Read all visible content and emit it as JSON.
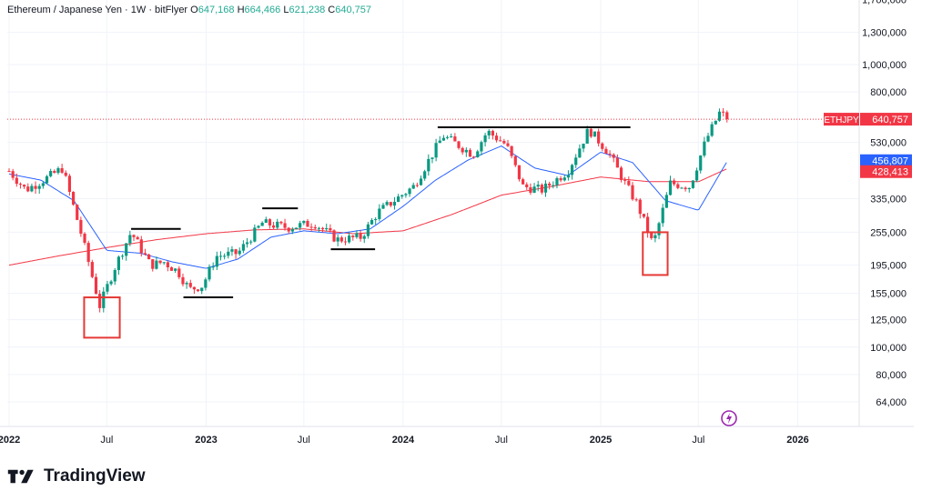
{
  "header": {
    "symbol_desc": "Ethereum / Japanese Yen · 1W · bitFlyer",
    "o_label": "O",
    "o_value": "647,168",
    "h_label": "H",
    "h_value": "664,466",
    "l_label": "L",
    "l_value": "621,238",
    "c_label": "C",
    "c_value": "640,757"
  },
  "brand": {
    "name": "TradingView"
  },
  "colors": {
    "up": "#089981",
    "down": "#f23645",
    "ma_fast": "#2962ff",
    "ma_slow": "#f23645",
    "annotation_box": "#e53935",
    "annotation_line": "#000000",
    "grid": "#f0f3fa",
    "axis_text": "#131722"
  },
  "chart_data": {
    "type": "candlestick",
    "symbol": "ETHJPY",
    "interval": "1W",
    "exchange": "bitFlyer",
    "y_scale": "log",
    "ylim": [
      50000,
      1800000
    ],
    "y_ticks": [
      {
        "label": "1,700,000",
        "value": 1700000
      },
      {
        "label": "1,300,000",
        "value": 1300000
      },
      {
        "label": "1,000,000",
        "value": 1000000
      },
      {
        "label": "800,000",
        "value": 800000
      },
      {
        "label": "530,000",
        "value": 530000
      },
      {
        "label": "335,000",
        "value": 335000
      },
      {
        "label": "255,000",
        "value": 255000
      },
      {
        "label": "195,000",
        "value": 195000
      },
      {
        "label": "155,000",
        "value": 155000
      },
      {
        "label": "125,000",
        "value": 125000
      },
      {
        "label": "100,000",
        "value": 100000
      },
      {
        "label": "80,000",
        "value": 80000
      },
      {
        "label": "64,000",
        "value": 64000
      }
    ],
    "x_ticks": [
      {
        "label": "2022",
        "date": "2022-01-01"
      },
      {
        "label": "Jul",
        "date": "2022-07-01"
      },
      {
        "label": "2023",
        "date": "2023-01-01"
      },
      {
        "label": "Jul",
        "date": "2023-07-01"
      },
      {
        "label": "2024",
        "date": "2024-01-01"
      },
      {
        "label": "Jul",
        "date": "2024-07-01"
      },
      {
        "label": "2025",
        "date": "2025-01-01"
      },
      {
        "label": "Jul",
        "date": "2025-07-01"
      },
      {
        "label": "2026",
        "date": "2026-01-01"
      }
    ],
    "price_path": [
      {
        "date": "2022-01-01",
        "price": 420000
      },
      {
        "date": "2022-02-01",
        "price": 360000
      },
      {
        "date": "2022-03-15",
        "price": 400000
      },
      {
        "date": "2022-04-10",
        "price": 430000
      },
      {
        "date": "2022-05-15",
        "price": 250000
      },
      {
        "date": "2022-06-18",
        "price": 140000
      },
      {
        "date": "2022-07-15",
        "price": 190000
      },
      {
        "date": "2022-08-15",
        "price": 255000
      },
      {
        "date": "2022-09-20",
        "price": 195000
      },
      {
        "date": "2022-10-15",
        "price": 200000
      },
      {
        "date": "2022-11-10",
        "price": 185000
      },
      {
        "date": "2022-12-01",
        "price": 160000
      },
      {
        "date": "2022-12-25",
        "price": 165000
      },
      {
        "date": "2023-01-20",
        "price": 210000
      },
      {
        "date": "2023-03-01",
        "price": 215000
      },
      {
        "date": "2023-04-15",
        "price": 275000
      },
      {
        "date": "2023-06-01",
        "price": 265000
      },
      {
        "date": "2023-07-20",
        "price": 275000
      },
      {
        "date": "2023-09-01",
        "price": 240000
      },
      {
        "date": "2023-10-15",
        "price": 245000
      },
      {
        "date": "2023-11-15",
        "price": 300000
      },
      {
        "date": "2023-12-20",
        "price": 335000
      },
      {
        "date": "2024-01-20",
        "price": 370000
      },
      {
        "date": "2024-03-15",
        "price": 560000
      },
      {
        "date": "2024-05-10",
        "price": 480000
      },
      {
        "date": "2024-06-05",
        "price": 580000
      },
      {
        "date": "2024-07-10",
        "price": 520000
      },
      {
        "date": "2024-08-10",
        "price": 370000
      },
      {
        "date": "2024-09-15",
        "price": 360000
      },
      {
        "date": "2024-11-01",
        "price": 420000
      },
      {
        "date": "2024-12-10",
        "price": 590000
      },
      {
        "date": "2025-01-15",
        "price": 490000
      },
      {
        "date": "2025-02-15",
        "price": 380000
      },
      {
        "date": "2025-03-10",
        "price": 320000
      },
      {
        "date": "2025-04-08",
        "price": 230000
      },
      {
        "date": "2025-05-10",
        "price": 380000
      },
      {
        "date": "2025-06-15",
        "price": 370000
      },
      {
        "date": "2025-07-15",
        "price": 540000
      },
      {
        "date": "2025-08-10",
        "price": 680000
      },
      {
        "date": "2025-08-24",
        "price": 640757
      }
    ],
    "series": [
      {
        "name": "MA fast",
        "points": [
          {
            "date": "2022-01-01",
            "value": 410000
          },
          {
            "date": "2022-03-01",
            "value": 390000
          },
          {
            "date": "2022-05-01",
            "value": 330000
          },
          {
            "date": "2022-07-01",
            "value": 220000
          },
          {
            "date": "2022-09-01",
            "value": 215000
          },
          {
            "date": "2022-11-01",
            "value": 200000
          },
          {
            "date": "2023-01-01",
            "value": 190000
          },
          {
            "date": "2023-03-01",
            "value": 205000
          },
          {
            "date": "2023-05-01",
            "value": 245000
          },
          {
            "date": "2023-07-01",
            "value": 258000
          },
          {
            "date": "2023-09-01",
            "value": 252000
          },
          {
            "date": "2023-11-01",
            "value": 262000
          },
          {
            "date": "2024-01-01",
            "value": 315000
          },
          {
            "date": "2024-03-01",
            "value": 390000
          },
          {
            "date": "2024-05-01",
            "value": 460000
          },
          {
            "date": "2024-07-01",
            "value": 515000
          },
          {
            "date": "2024-09-01",
            "value": 430000
          },
          {
            "date": "2024-11-01",
            "value": 405000
          },
          {
            "date": "2025-01-01",
            "value": 490000
          },
          {
            "date": "2025-03-01",
            "value": 450000
          },
          {
            "date": "2025-05-01",
            "value": 330000
          },
          {
            "date": "2025-07-01",
            "value": 305000
          },
          {
            "date": "2025-08-24",
            "value": 456807
          }
        ]
      },
      {
        "name": "MA slow",
        "points": [
          {
            "date": "2022-01-01",
            "value": 195000
          },
          {
            "date": "2022-04-01",
            "value": 210000
          },
          {
            "date": "2022-07-01",
            "value": 225000
          },
          {
            "date": "2022-10-01",
            "value": 240000
          },
          {
            "date": "2023-01-01",
            "value": 252000
          },
          {
            "date": "2023-04-01",
            "value": 260000
          },
          {
            "date": "2023-07-01",
            "value": 262000
          },
          {
            "date": "2023-10-01",
            "value": 252000
          },
          {
            "date": "2024-01-01",
            "value": 258000
          },
          {
            "date": "2024-04-01",
            "value": 295000
          },
          {
            "date": "2024-07-01",
            "value": 345000
          },
          {
            "date": "2024-10-01",
            "value": 370000
          },
          {
            "date": "2025-01-01",
            "value": 400000
          },
          {
            "date": "2025-04-01",
            "value": 385000
          },
          {
            "date": "2025-07-01",
            "value": 385000
          },
          {
            "date": "2025-08-24",
            "value": 428413
          }
        ]
      }
    ],
    "price_lines": [
      {
        "label": "ETHJPY",
        "value_label": "640,757",
        "value": 640757,
        "color": "#f23645"
      },
      {
        "label": "",
        "value_label": "456,807",
        "value": 456807,
        "color": "#2962ff"
      },
      {
        "label": "",
        "value_label": "428,413",
        "value": 428413,
        "color": "#f23645"
      }
    ],
    "annotations": {
      "boxes": [
        {
          "from": "2022-05-20",
          "to": "2022-07-25",
          "low": 108000,
          "high": 150000
        },
        {
          "from": "2025-03-20",
          "to": "2025-05-05",
          "low": 180000,
          "high": 255000
        }
      ],
      "lines": [
        {
          "from": "2022-08-15",
          "to": "2022-11-15",
          "value": 262000
        },
        {
          "from": "2022-11-20",
          "to": "2023-02-20",
          "value": 150000
        },
        {
          "from": "2023-04-15",
          "to": "2023-06-20",
          "value": 310000
        },
        {
          "from": "2023-08-20",
          "to": "2023-11-10",
          "value": 222000
        },
        {
          "from": "2024-03-05",
          "to": "2025-02-25",
          "value": 600000
        }
      ]
    }
  }
}
